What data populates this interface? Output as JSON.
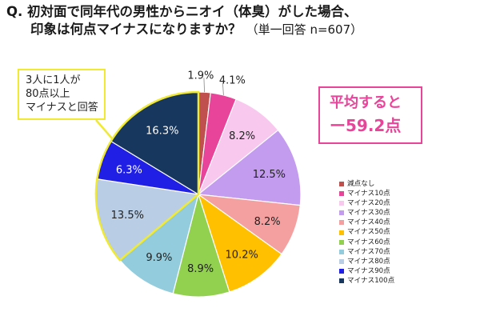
{
  "title": {
    "line1": "Q. 初対面で同年代の男性からニオイ（体臭）がした場合、",
    "line2": "印象は何点マイナスになりますか？",
    "line2_sub": "（単一回答 n=607）"
  },
  "average_box": {
    "line1": "平均すると",
    "line2": "ー59.2点"
  },
  "callout": {
    "line1": "3人に1人が",
    "line2": "80点以上",
    "line3": "マイナスと回答"
  },
  "colors": {
    "accent_pink": "#e8449a",
    "callout_yellow": "#f0ea33"
  },
  "chart_data": {
    "type": "pie",
    "start": "12 o'clock, clockwise",
    "legend_position": "right",
    "slices": [
      {
        "label": "減点なし",
        "value": 1.9,
        "color": "#c0504d"
      },
      {
        "label": "マイナス10点",
        "value": 4.1,
        "color": "#e8449a"
      },
      {
        "label": "マイナス20点",
        "value": 8.2,
        "color": "#f9c8ee"
      },
      {
        "label": "マイナス30点",
        "value": 12.5,
        "color": "#c39bef"
      },
      {
        "label": "マイナス40点",
        "value": 8.2,
        "color": "#f4a0a0"
      },
      {
        "label": "マイナス50点",
        "value": 10.2,
        "color": "#ffc000"
      },
      {
        "label": "マイナス60点",
        "value": 8.9,
        "color": "#92d050"
      },
      {
        "label": "マイナス70点",
        "value": 9.9,
        "color": "#93cddd"
      },
      {
        "label": "マイナス80点",
        "value": 13.5,
        "color": "#b9cde5"
      },
      {
        "label": "マイナス90点",
        "value": 6.3,
        "color": "#1f1fe6"
      },
      {
        "label": "マイナス100点",
        "value": 16.3,
        "color": "#17375e"
      }
    ]
  }
}
